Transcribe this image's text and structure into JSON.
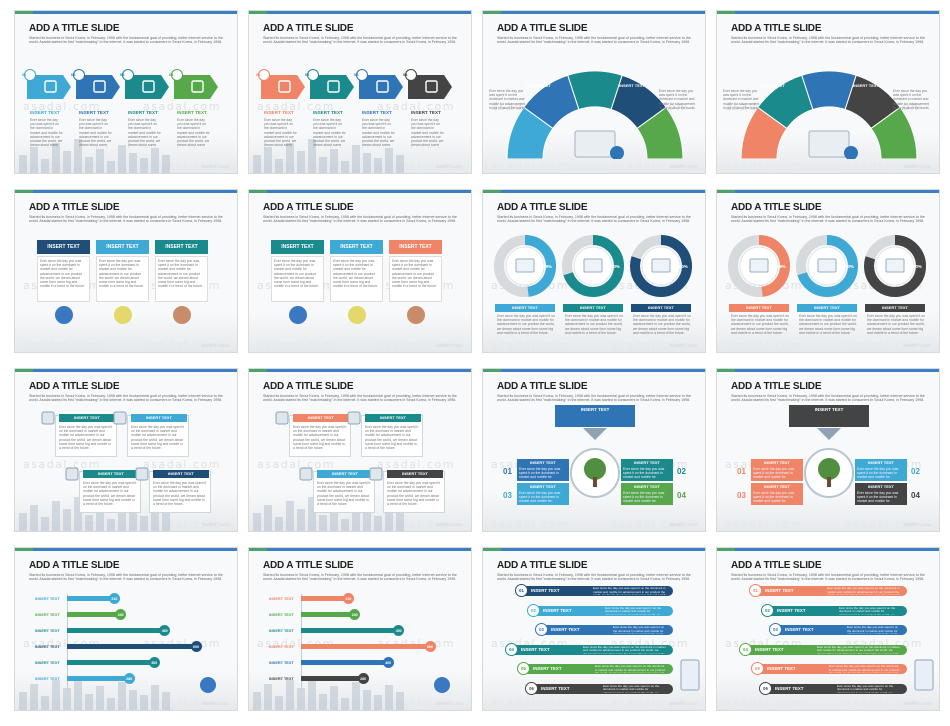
{
  "slide_title": "ADD A TITLE SLIDE",
  "body_text": "Started its business in Seoul Korea, in February, 1998 with the fundamental goal of providing, better internet service to the world. Asadal started its first \"matchmaking\" in the internet. It was started to consumers in Seoul Korea, in February 1998.",
  "insert_logo": "INSERT LOGO",
  "insert_text": "INSERT TEXT",
  "watermark": "asadal.com",
  "paragraph": "Ever since the day you was spent it on the dominant in market and mobile for advancement in our product the world, we dream about some form some big and mobile in a trend of the future.",
  "step_numbers": [
    "01",
    "02",
    "03",
    "04"
  ],
  "row_numbers": [
    "01",
    "02",
    "03",
    "04",
    "05",
    "06"
  ],
  "bar_values": [
    "210",
    "240",
    "450",
    "600",
    "400",
    "280"
  ],
  "donut_percents": [
    "48%",
    "70%",
    "80%"
  ],
  "colors": {
    "blue": "#2f74b5",
    "navy": "#1f4e79",
    "teal": "#1b8a8c",
    "green": "#56a84a",
    "cyan": "#3fa9d6",
    "salmon": "#ef8467",
    "dark": "#444444",
    "gray": "#6f6f6f"
  }
}
